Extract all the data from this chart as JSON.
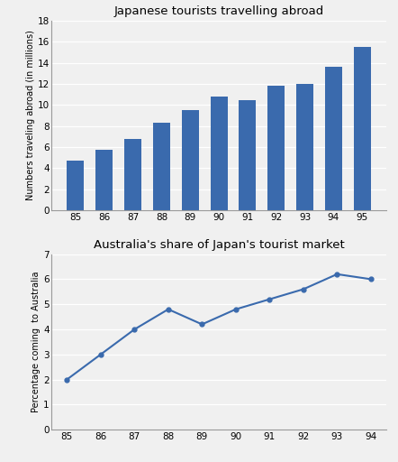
{
  "bar_years": [
    85,
    86,
    87,
    88,
    89,
    90,
    91,
    92,
    93,
    94,
    95
  ],
  "bar_values": [
    4.7,
    5.7,
    6.8,
    8.3,
    9.5,
    10.8,
    10.5,
    11.8,
    12.0,
    13.6,
    15.5
  ],
  "bar_color": "#3a6aad",
  "bar_title": "Japanese tourists travelling abroad",
  "bar_ylabel": "Numbers traveling abroad (in millions)",
  "bar_ylim": [
    0,
    18
  ],
  "bar_yticks": [
    0,
    2,
    4,
    6,
    8,
    10,
    12,
    14,
    16,
    18
  ],
  "line_years": [
    85,
    86,
    87,
    88,
    89,
    90,
    91,
    92,
    93,
    94
  ],
  "line_values": [
    2.0,
    3.0,
    4.0,
    4.8,
    4.2,
    4.8,
    5.2,
    5.6,
    6.2,
    6.0
  ],
  "line_color": "#3a6aad",
  "line_title": "Australia's share of Japan's tourist market",
  "line_ylabel": "Percentage coming  to Australia",
  "line_ylim": [
    0,
    7
  ],
  "line_yticks": [
    0,
    1,
    2,
    3,
    4,
    5,
    6,
    7
  ],
  "bg_color": "#f0f0f0",
  "plot_bg": "#f0f0f0",
  "grid_color": "#ffffff",
  "tick_label_size": 7.5,
  "title_fontsize": 9.5,
  "ylabel_fontsize": 7
}
